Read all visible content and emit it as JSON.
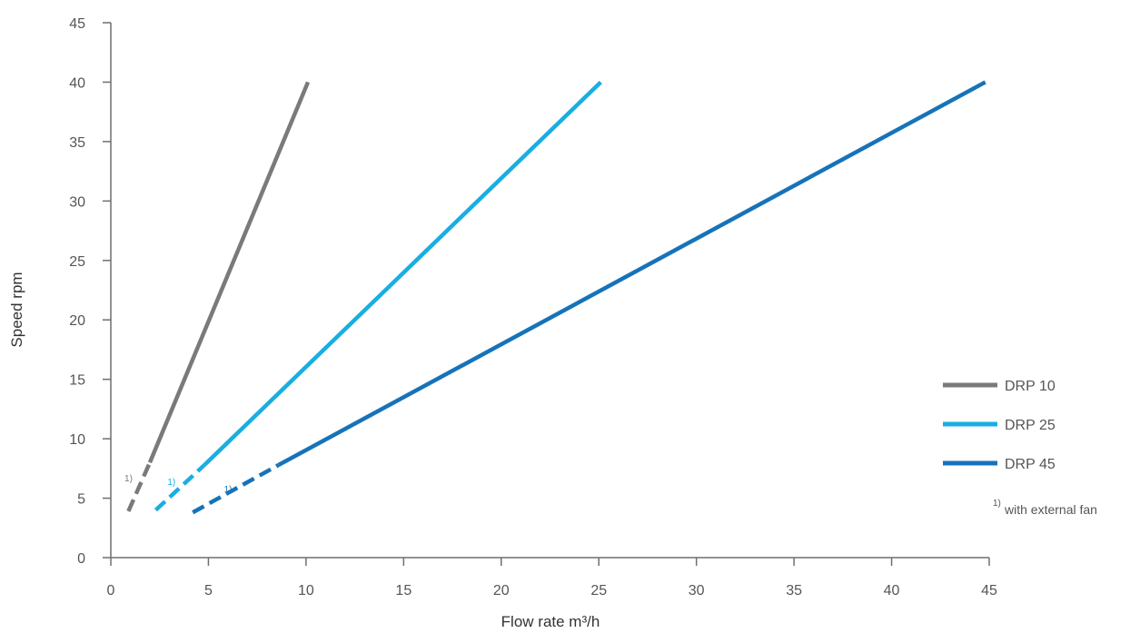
{
  "chart_data": {
    "type": "line",
    "xlabel": "Flow rate m³/h",
    "ylabel": "Speed rpm",
    "xlim": [
      0,
      45
    ],
    "ylim": [
      0,
      45
    ],
    "xticks": [
      "0",
      "5",
      "10",
      "15",
      "20",
      "25",
      "30",
      "35",
      "40",
      "45"
    ],
    "yticks": [
      "0",
      "5",
      "10",
      "15",
      "20",
      "25",
      "30",
      "35",
      "40",
      "45"
    ],
    "grid": false,
    "legend_position": "right",
    "series": [
      {
        "name": "DRP 10",
        "color": "#7a7a7a",
        "solid": [
          [
            2.0,
            8.0
          ],
          [
            10.1,
            40.0
          ]
        ],
        "dashed": [
          [
            0.9,
            3.9
          ],
          [
            2.0,
            8.0
          ]
        ],
        "note_position": [
          0.7,
          6.4
        ]
      },
      {
        "name": "DRP 25",
        "color": "#19aee2",
        "solid": [
          [
            4.8,
            7.8
          ],
          [
            25.1,
            40.0
          ]
        ],
        "dashed": [
          [
            2.3,
            4.0
          ],
          [
            4.8,
            7.8
          ]
        ],
        "note_position": [
          2.9,
          6.1
        ]
      },
      {
        "name": "DRP 45",
        "color": "#1673b9",
        "solid": [
          [
            8.6,
            7.8
          ],
          [
            44.8,
            40.0
          ]
        ],
        "dashed": [
          [
            4.2,
            3.8
          ],
          [
            8.6,
            7.8
          ]
        ],
        "note_position": [
          5.8,
          5.5
        ]
      }
    ],
    "note_mark": "1)",
    "footnote": {
      "mark": "1)",
      "text": "with external fan"
    }
  }
}
